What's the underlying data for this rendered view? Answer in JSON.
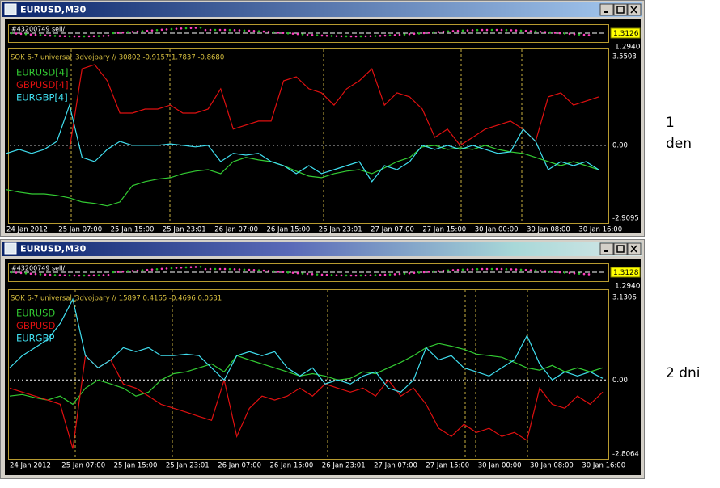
{
  "windows": [
    {
      "title": "EURUSD,M30",
      "trade_label": "#43200749 sell/",
      "price_labels": [
        "1.3126",
        "1.2940"
      ],
      "indicator": {
        "type": "line",
        "title": "SOK 6-7 universal_3dvojpary  //  30802 -0.9157 1.7837 -0.8680",
        "x_labels": [
          "24 Jan 2012",
          "25 Jan 07:00",
          "25 Jan 15:00",
          "25 Jan 23:01",
          "26 Jan 07:00",
          "26 Jan 15:00",
          "26 Jan 23:01",
          "27 Jan 07:00",
          "27 Jan 15:00",
          "30 Jan 00:00",
          "30 Jan 08:00",
          "30 Jan 16:00"
        ],
        "ylim": [
          -2.9095,
          3.5503
        ],
        "yticks": [
          3.5503,
          {
            "value": 0,
            "label": "0.00"
          },
          -2.9095
        ],
        "series": [
          {
            "name": "EURUSD[4]",
            "color": "#33cc33",
            "values": [
              -1.77,
              -1.87,
              -1.94,
              -1.94,
              -2.0,
              -2.1,
              -2.26,
              -2.32,
              -2.42,
              -2.26,
              -1.61,
              -1.45,
              -1.35,
              -1.29,
              -1.13,
              -1.03,
              -0.97,
              -1.13,
              -0.65,
              -0.48,
              -0.58,
              -0.65,
              -0.81,
              -1.03,
              -1.23,
              -1.29,
              -1.13,
              -1.03,
              -0.97,
              -1.13,
              -0.9,
              -0.65,
              -0.48,
              -0.06,
              0,
              -0.16,
              -0.1,
              -0.16,
              0,
              -0.16,
              -0.26,
              -0.32,
              -0.48,
              -0.65,
              -0.81,
              -0.65,
              -0.81,
              -0.97
            ]
          },
          {
            "name": "GBPUSD[4]",
            "color": "#e01010",
            "values": [
              null,
              null,
              null,
              null,
              null,
              -0.16,
              3.06,
              3.23,
              2.58,
              1.29,
              1.29,
              1.45,
              1.45,
              1.61,
              1.29,
              1.29,
              1.45,
              2.26,
              0.65,
              0.81,
              0.97,
              0.97,
              2.58,
              2.74,
              2.26,
              2.1,
              1.61,
              2.26,
              2.58,
              3.06,
              1.61,
              2.1,
              1.94,
              1.45,
              0.32,
              0.65,
              0,
              0.32,
              0.65,
              0.81,
              0.97,
              0.65,
              0.16,
              1.94,
              2.1,
              1.61,
              1.77,
              1.94
            ]
          },
          {
            "name": "EURGBP[4]",
            "color": "#40dff0",
            "values": [
              -0.32,
              -0.16,
              -0.32,
              -0.16,
              0.16,
              1.61,
              -0.48,
              -0.65,
              -0.16,
              0.16,
              0,
              0,
              0,
              0.06,
              0,
              -0.06,
              0,
              -0.65,
              -0.32,
              -0.39,
              -0.32,
              -0.65,
              -0.81,
              -1.13,
              -0.81,
              -1.13,
              -0.97,
              -0.81,
              -0.65,
              -1.45,
              -0.81,
              -0.97,
              -0.65,
              0,
              -0.16,
              0,
              -0.16,
              0,
              -0.16,
              -0.32,
              -0.26,
              0.65,
              0.16,
              -0.97,
              -0.65,
              -0.81,
              -0.65,
              -0.97
            ]
          }
        ]
      }
    },
    {
      "title": "EURUSD,M30",
      "trade_label": "#43200749 sell/",
      "price_labels": [
        "1.3128",
        "1.2940"
      ],
      "indicator": {
        "type": "line",
        "title": "SOK 6-7 universal_3dvojpary  //  15897 0.4165 -0.4696 0.0531",
        "x_labels": [
          "24 Jan 2012",
          "25 Jan 07:00",
          "25 Jan 15:00",
          "25 Jan 23:01",
          "26 Jan 07:00",
          "26 Jan 15:00",
          "26 Jan 23:01",
          "27 Jan 07:00",
          "27 Jan 15:00",
          "30 Jan 00:00",
          "30 Jan 08:00",
          "30 Jan 16:00"
        ],
        "ylim": [
          -2.8064,
          3.1306
        ],
        "yticks": [
          3.1306,
          {
            "value": 0,
            "label": "0.00"
          },
          -2.8064
        ],
        "series": [
          {
            "name": "EURUSD",
            "color": "#33cc33",
            "values": [
              -0.61,
              -0.55,
              -0.67,
              -0.76,
              -0.61,
              -0.92,
              -0.31,
              0,
              -0.15,
              -0.31,
              -0.61,
              -0.46,
              0,
              0.24,
              0.31,
              0.46,
              0.61,
              0.31,
              0.92,
              0.76,
              0.61,
              0.46,
              0.31,
              0.15,
              0.24,
              0.15,
              0,
              0.06,
              0.31,
              0.24,
              0.46,
              0.67,
              0.92,
              1.22,
              1.38,
              1.28,
              1.16,
              0.98,
              0.92,
              0.86,
              0.67,
              0.46,
              0.37,
              0.55,
              0.31,
              0.46,
              0.31,
              0.46
            ]
          },
          {
            "name": "GBPUSD",
            "color": "#e01010",
            "values": [
              -0.31,
              -0.46,
              -0.61,
              -0.76,
              -0.92,
              -2.6,
              0.92,
              0.46,
              0.76,
              -0.15,
              -0.31,
              -0.61,
              -0.92,
              -1.07,
              -1.22,
              -1.38,
              -1.53,
              0,
              -2.14,
              -1.07,
              -0.61,
              -0.76,
              -0.61,
              -0.31,
              -0.61,
              -0.15,
              -0.31,
              -0.46,
              -0.31,
              -0.61,
              0,
              -0.61,
              -0.31,
              -0.92,
              -1.83,
              -2.14,
              -1.68,
              -1.99,
              -1.83,
              -2.14,
              -1.99,
              -2.29,
              -0.31,
              -0.92,
              -1.07,
              -0.61,
              -0.92,
              -0.46
            ]
          },
          {
            "name": "EURGBP",
            "color": "#40dff0",
            "values": [
              0.46,
              0.92,
              1.22,
              1.53,
              2.14,
              3.06,
              0.92,
              0.46,
              0.76,
              1.22,
              1.07,
              1.22,
              0.92,
              0.92,
              0.98,
              0.92,
              0.46,
              0,
              0.92,
              1.07,
              0.92,
              1.07,
              0.46,
              0.15,
              0.46,
              -0.15,
              0,
              -0.15,
              0.15,
              0.31,
              -0.31,
              -0.46,
              0,
              1.22,
              0.76,
              0.92,
              0.46,
              0.31,
              0.15,
              0.46,
              0.76,
              1.68,
              0.61,
              0,
              0.31,
              0.15,
              0.31,
              0.06
            ]
          }
        ]
      }
    }
  ],
  "side_labels": [
    [
      "1",
      "den"
    ],
    [
      "2 dni"
    ]
  ]
}
